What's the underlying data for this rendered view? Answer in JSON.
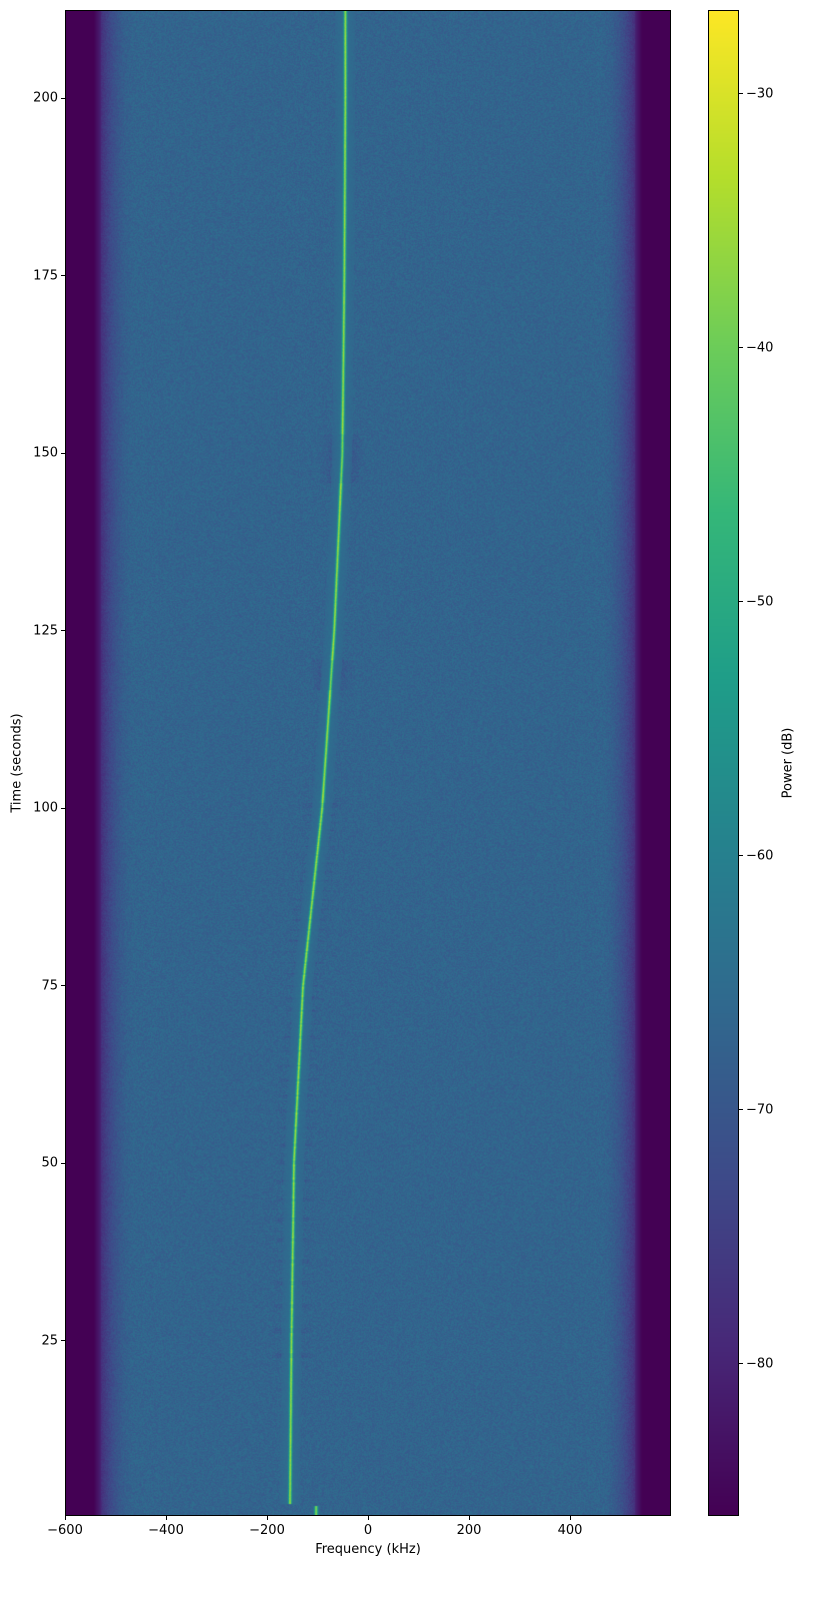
{
  "chart_data": {
    "type": "heatmap",
    "title": "",
    "xlabel": "Frequency (kHz)",
    "ylabel": "Time (seconds)",
    "xlim": [
      -600,
      600
    ],
    "ylim": [
      0.3,
      212.4
    ],
    "xticks": [
      -600,
      -400,
      -200,
      0,
      200,
      400
    ],
    "xtick_labels": [
      "−600",
      "−400",
      "−200",
      "0",
      "200",
      "400"
    ],
    "yticks": [
      25,
      50,
      75,
      100,
      125,
      150,
      175,
      200
    ],
    "ytick_labels": [
      "25",
      "50",
      "75",
      "100",
      "125",
      "150",
      "175",
      "200"
    ],
    "colormap": "viridis",
    "colorbar": {
      "label": "Power (dB)",
      "range": [
        -86,
        -26.7
      ],
      "ticks": [
        -30,
        -40,
        -50,
        -60,
        -70,
        -80
      ],
      "tick_labels": [
        "−30",
        "−40",
        "−50",
        "−60",
        "−70",
        "−80"
      ]
    },
    "noise_floor_db": -67,
    "out_of_band_db": -86,
    "passband_edge_khz": 530,
    "signal_peak_db": -36,
    "signal_track": [
      {
        "time": 1.8,
        "freq_khz": -155
      },
      {
        "time": 10,
        "freq_khz": -154
      },
      {
        "time": 25,
        "freq_khz": -152
      },
      {
        "time": 50,
        "freq_khz": -147
      },
      {
        "time": 75,
        "freq_khz": -129
      },
      {
        "time": 100,
        "freq_khz": -91
      },
      {
        "time": 125,
        "freq_khz": -67
      },
      {
        "time": 150,
        "freq_khz": -51
      },
      {
        "time": 175,
        "freq_khz": -47
      },
      {
        "time": 200,
        "freq_khz": -45
      },
      {
        "time": 212.4,
        "freq_khz": -45
      }
    ],
    "secondary_signal": {
      "time_range": [
        0.3,
        1.6
      ],
      "freq_khz": -103
    }
  }
}
